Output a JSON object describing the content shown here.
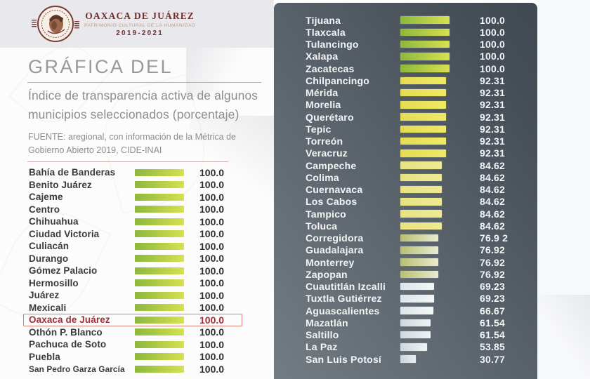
{
  "header": {
    "org_name": "OAXACA DE JUÁREZ",
    "org_subtitle": "PATRIMONIO CULTURAL DE LA HUMANIDAD",
    "org_years": "2019-2021"
  },
  "title_block": {
    "title": "GRÁFICA DEL",
    "subtitle_line1": "Índice de transparencia activa de algunos",
    "subtitle_line2": "municipios seleccionados (porcentaje)",
    "source_line1": "FUENTE: aregional, con información de la Métrica de",
    "source_line2": "Gobierno Abierto 2019, CIDE-INAI"
  },
  "colors": {
    "accent_maroon": "#6d2f2c",
    "accent_tan": "#c49a72",
    "highlight_text": "#a03038",
    "highlight_border": "#dc7f72",
    "rule_line": "#cfa7a7",
    "panel_gradient": [
      "#737c83",
      "#404951"
    ],
    "bar_gradients": {
      "100": [
        "#8cb83d",
        "#d7e14f"
      ],
      "92.31": [
        "#e4dd52",
        "#f0e965"
      ],
      "84.62": [
        "#e7e382",
        "#edea94"
      ],
      "76.92": [
        "#b7c071",
        "#e9ebd1"
      ],
      "69.23": [
        "#dee6ea",
        "#f4f6f7"
      ],
      "66.67": [
        "#dee6ea",
        "#f4f6f7"
      ],
      "61.54": [
        "#ced8dd",
        "#eff2f4"
      ],
      "53.85": [
        "#ced8dd",
        "#eff2f4"
      ],
      "30.77": [
        "#ccd6db",
        "#eaeef1"
      ]
    }
  },
  "chart_data": {
    "type": "bar",
    "orientation": "horizontal",
    "title": "Índice de transparencia activa de algunos municipios seleccionados (porcentaje)",
    "source": "FUENTE: aregional, con información de la Métrica de Gobierno Abierto 2019, CIDE-INAI",
    "value_unit": "percent",
    "xlim": [
      0,
      100
    ],
    "highlight": "Oaxaca de Juárez",
    "left_column": [
      {
        "name": "Bahía de Banderas",
        "value": 100,
        "display": "100.0"
      },
      {
        "name": "Benito Juárez",
        "value": 100,
        "display": "100.0"
      },
      {
        "name": "Cajeme",
        "value": 100,
        "display": "100.0"
      },
      {
        "name": "Centro",
        "value": 100,
        "display": "100.0"
      },
      {
        "name": "Chihuahua",
        "value": 100,
        "display": "100.0"
      },
      {
        "name": "Ciudad Victoria",
        "value": 100,
        "display": "100.0"
      },
      {
        "name": "Culiacán",
        "value": 100,
        "display": "100.0"
      },
      {
        "name": "Durango",
        "value": 100,
        "display": "100.0"
      },
      {
        "name": "Gómez Palacio",
        "value": 100,
        "display": "100.0"
      },
      {
        "name": "Hermosillo",
        "value": 100,
        "display": "100.0"
      },
      {
        "name": "Juárez",
        "value": 100,
        "display": "100.0"
      },
      {
        "name": "Mexicali",
        "value": 100,
        "display": "100.0"
      },
      {
        "name": "Oaxaca de Juárez",
        "value": 100,
        "display": "100.0",
        "highlight": true
      },
      {
        "name": "Othón P. Blanco",
        "value": 100,
        "display": "100.0"
      },
      {
        "name": "Pachuca de Soto",
        "value": 100,
        "display": "100.0"
      },
      {
        "name": "Puebla",
        "value": 100,
        "display": "100.0"
      },
      {
        "name": "San Pedro Garza García",
        "value": 100,
        "display": "100.0",
        "small": true
      }
    ],
    "right_column": [
      {
        "name": "Tijuana",
        "value": 100,
        "display": "100.0"
      },
      {
        "name": "Tlaxcala",
        "value": 100,
        "display": "100.0"
      },
      {
        "name": "Tulancingo",
        "value": 100,
        "display": "100.0"
      },
      {
        "name": "Xalapa",
        "value": 100,
        "display": "100.0"
      },
      {
        "name": "Zacatecas",
        "value": 100,
        "display": "100.0"
      },
      {
        "name": "Chilpancingo",
        "value": 92.31,
        "display": "92.31"
      },
      {
        "name": "Mérida",
        "value": 92.31,
        "display": "92.31"
      },
      {
        "name": "Morelia",
        "value": 92.31,
        "display": "92.31"
      },
      {
        "name": "Querétaro",
        "value": 92.31,
        "display": "92.31"
      },
      {
        "name": "Tepic",
        "value": 92.31,
        "display": "92.31"
      },
      {
        "name": "Torreón",
        "value": 92.31,
        "display": "92.31"
      },
      {
        "name": "Veracruz",
        "value": 92.31,
        "display": "92.31"
      },
      {
        "name": "Campeche",
        "value": 84.62,
        "display": "84.62"
      },
      {
        "name": "Colima",
        "value": 84.62,
        "display": "84.62"
      },
      {
        "name": "Cuernavaca",
        "value": 84.62,
        "display": "84.62"
      },
      {
        "name": "Los Cabos",
        "value": 84.62,
        "display": "84.62"
      },
      {
        "name": "Tampico",
        "value": 84.62,
        "display": "84.62"
      },
      {
        "name": "Toluca",
        "value": 84.62,
        "display": "84.62"
      },
      {
        "name": "Corregidora",
        "value": 76.92,
        "display": "76.9 2"
      },
      {
        "name": "Guadalajara",
        "value": 76.92,
        "display": "76.92"
      },
      {
        "name": "Monterrey",
        "value": 76.92,
        "display": "76.92"
      },
      {
        "name": "Zapopan",
        "value": 76.92,
        "display": "76.92"
      },
      {
        "name": "Cuautitlán Izcalli",
        "value": 69.23,
        "display": "69.23"
      },
      {
        "name": "Tuxtla Gutiérrez",
        "value": 69.23,
        "display": "69.23"
      },
      {
        "name": "Aguascalientes",
        "value": 66.67,
        "display": "66.67"
      },
      {
        "name": "Mazatlán",
        "value": 61.54,
        "display": "61.54"
      },
      {
        "name": "Saltillo",
        "value": 61.54,
        "display": "61.54"
      },
      {
        "name": "La Paz",
        "value": 53.85,
        "display": "53.85"
      },
      {
        "name": "San Luis Potosí",
        "value": 30.77,
        "display": "30.77"
      }
    ]
  }
}
